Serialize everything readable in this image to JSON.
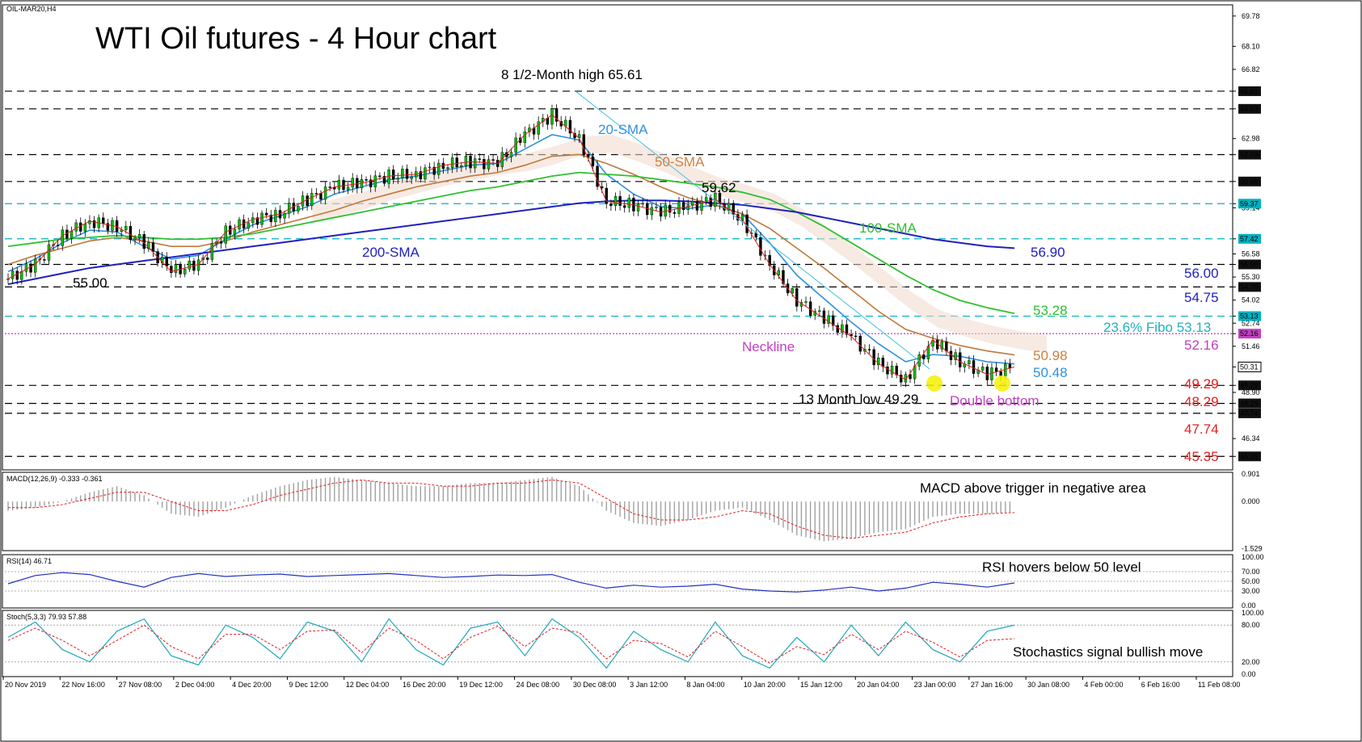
{
  "chart_data": {
    "type": "line",
    "title": "WTI Oil futures - 4 Hour chart",
    "symbol_label": "OIL-MAR20,H4",
    "price_axis_ticks": [
      "69.78",
      "68.10",
      "66.82",
      "65.61",
      "64.63",
      "62.98",
      "62.09",
      "60.60",
      "59.37",
      "59.14",
      "57.42",
      "56.58",
      "56.00",
      "55.30",
      "54.75",
      "54.02",
      "53.13",
      "52.74",
      "52.16",
      "51.46",
      "50.31",
      "49.29",
      "48.90",
      "48.29",
      "47.74",
      "46.34",
      "45.35"
    ],
    "levels": [
      {
        "value": 65.61,
        "label": "65.61",
        "style": "dashed",
        "color": "#000000",
        "axis_box": true
      },
      {
        "value": 64.63,
        "label": "64.63",
        "style": "dashed",
        "color": "#000000",
        "axis_box": true
      },
      {
        "value": 62.09,
        "label": "62.09",
        "style": "dashed",
        "color": "#000000",
        "axis_box": true
      },
      {
        "value": 60.6,
        "label": "60.60",
        "style": "dashed",
        "color": "#000000",
        "axis_box": true
      },
      {
        "value": 59.37,
        "label": "59.37",
        "style": "dashed",
        "color": "#00b0c0",
        "axis_box": true
      },
      {
        "value": 57.42,
        "label": "57.42",
        "style": "dashed",
        "color": "#00b0c0",
        "axis_box": true
      },
      {
        "value": 56.0,
        "label": "56.00",
        "style": "dashed",
        "color": "#000000",
        "axis_box": true
      },
      {
        "value": 54.75,
        "label": "54.75",
        "style": "dashed",
        "color": "#000000",
        "axis_box": true
      },
      {
        "value": 53.13,
        "label": "53.13",
        "style": "dashed",
        "color": "#00b0c0",
        "axis_box": true
      },
      {
        "value": 52.16,
        "label": "52.16",
        "style": "dotted",
        "color": "#c040c0",
        "axis_box": true
      },
      {
        "value": 49.29,
        "label": "49.29",
        "style": "dashed",
        "color": "#000000",
        "axis_box": true
      },
      {
        "value": 48.29,
        "label": "48.29",
        "style": "dashed",
        "color": "#000000",
        "axis_box": true
      },
      {
        "value": 47.74,
        "label": "47.74",
        "style": "dashed",
        "color": "#000000",
        "axis_box": true
      },
      {
        "value": 45.35,
        "label": "45.35",
        "style": "dashed",
        "color": "#000000",
        "axis_box": true
      }
    ],
    "current_price": {
      "value": 50.31,
      "label": "50.31"
    },
    "annotations": [
      {
        "text": "8 1/2-Month high 65.61",
        "color": "#000000"
      },
      {
        "text": "20-SMA",
        "color": "#3090e0"
      },
      {
        "text": "50-SMA",
        "color": "#d08040"
      },
      {
        "text": "59.62",
        "color": "#000000"
      },
      {
        "text": "100-SMA",
        "color": "#30c030"
      },
      {
        "text": "200-SMA",
        "color": "#2020c0"
      },
      {
        "text": "56.90",
        "color": "#2020c0"
      },
      {
        "text": "55.00",
        "color": "#000000"
      },
      {
        "text": "56.00",
        "color": "#2020c0"
      },
      {
        "text": "54.75",
        "color": "#2020c0"
      },
      {
        "text": "53.28",
        "color": "#30c030"
      },
      {
        "text": "23.6% Fibo 53.13",
        "color": "#20b0c0"
      },
      {
        "text": "Neckline",
        "color": "#c040c0"
      },
      {
        "text": "52.16",
        "color": "#c040c0"
      },
      {
        "text": "50.98",
        "color": "#d08040"
      },
      {
        "text": "50.48",
        "color": "#3090e0"
      },
      {
        "text": "49.29",
        "color": "#e02020"
      },
      {
        "text": "13 Month low 49.29",
        "color": "#000000"
      },
      {
        "text": "Double bottom",
        "color": "#c040c0"
      },
      {
        "text": "48.29",
        "color": "#e02020"
      },
      {
        "text": "47.74",
        "color": "#e02020"
      },
      {
        "text": "45.35",
        "color": "#e02020"
      }
    ],
    "x_tick_labels": [
      "20 Nov 2019",
      "22 Nov 16:00",
      "27 Nov 08:00",
      "2 Dec 04:00",
      "4 Dec 20:00",
      "9 Dec 12:00",
      "12 Dec 04:00",
      "16 Dec 20:00",
      "19 Dec 12:00",
      "24 Dec 08:00",
      "30 Dec 08:00",
      "3 Jan 12:00",
      "8 Jan 04:00",
      "10 Jan 20:00",
      "15 Jan 12:00",
      "20 Jan 04:00",
      "23 Jan 00:00",
      "27 Jan 16:00",
      "30 Jan 08:00",
      "4 Feb 00:00",
      "6 Feb 16:00",
      "11 Feb 08:00"
    ],
    "price_series": [
      {
        "name": "close",
        "values": [
          55.2,
          56.0,
          57.6,
          58.4,
          58.1,
          57.2,
          55.6,
          56.0,
          57.8,
          58.5,
          58.8,
          59.6,
          60.3,
          60.5,
          60.9,
          61.0,
          61.5,
          61.7,
          61.6,
          63.2,
          64.3,
          63.0,
          59.5,
          59.3,
          58.9,
          59.2,
          59.62,
          58.5,
          56.0,
          54.0,
          53.0,
          52.0,
          50.5,
          49.6,
          51.8,
          50.6,
          49.9,
          50.31
        ]
      },
      {
        "name": "20-SMA",
        "values": [
          55.6,
          56.3,
          57.2,
          57.9,
          57.8,
          57.0,
          56.3,
          56.5,
          57.4,
          58.2,
          58.7,
          59.2,
          59.9,
          60.3,
          60.7,
          60.9,
          61.2,
          61.5,
          61.6,
          62.4,
          63.2,
          62.9,
          61.0,
          59.9,
          59.2,
          59.1,
          59.3,
          58.8,
          57.2,
          55.4,
          54.1,
          52.8,
          51.6,
          50.6,
          51.0,
          50.9,
          50.6,
          50.48
        ]
      },
      {
        "name": "50-SMA",
        "values": [
          56.0,
          56.5,
          56.9,
          57.3,
          57.5,
          57.3,
          57.0,
          57.0,
          57.3,
          57.8,
          58.2,
          58.6,
          59.0,
          59.5,
          59.9,
          60.3,
          60.6,
          60.9,
          61.1,
          61.5,
          62.0,
          62.1,
          61.6,
          61.0,
          60.3,
          59.7,
          59.3,
          58.8,
          58.0,
          56.9,
          55.8,
          54.6,
          53.4,
          52.4,
          51.9,
          51.5,
          51.2,
          50.98
        ]
      },
      {
        "name": "100-SMA",
        "values": [
          57.0,
          57.2,
          57.4,
          57.5,
          57.6,
          57.5,
          57.4,
          57.4,
          57.5,
          57.7,
          58.0,
          58.3,
          58.6,
          58.9,
          59.2,
          59.5,
          59.8,
          60.1,
          60.3,
          60.6,
          60.9,
          61.1,
          61.0,
          60.9,
          60.7,
          60.5,
          60.3,
          60.0,
          59.6,
          58.9,
          58.1,
          57.2,
          56.3,
          55.4,
          54.6,
          54.0,
          53.6,
          53.28
        ]
      },
      {
        "name": "200-SMA",
        "values": [
          54.9,
          55.2,
          55.5,
          55.8,
          56.0,
          56.2,
          56.4,
          56.6,
          56.8,
          57.0,
          57.2,
          57.4,
          57.6,
          57.8,
          58.0,
          58.2,
          58.4,
          58.6,
          58.8,
          59.0,
          59.2,
          59.4,
          59.5,
          59.55,
          59.55,
          59.5,
          59.4,
          59.3,
          59.1,
          58.9,
          58.6,
          58.3,
          58.0,
          57.7,
          57.4,
          57.2,
          57.0,
          56.9
        ]
      }
    ],
    "panels": [
      {
        "name": "MACD",
        "header": "MACD(12,26,9) -0.333 -0.361",
        "ticks": [
          "0.901",
          "0.000",
          "-1.529"
        ],
        "note": "MACD above trigger in negative area",
        "histogram": [
          -0.3,
          -0.2,
          0.0,
          0.3,
          0.5,
          0.2,
          -0.4,
          -0.5,
          -0.2,
          0.2,
          0.5,
          0.7,
          0.8,
          0.7,
          0.6,
          0.5,
          0.5,
          0.6,
          0.6,
          0.7,
          0.8,
          0.5,
          -0.3,
          -0.7,
          -0.8,
          -0.6,
          -0.3,
          -0.2,
          -0.6,
          -1.1,
          -1.3,
          -1.2,
          -1.0,
          -0.9,
          -0.5,
          -0.4,
          -0.4,
          -0.33
        ],
        "signal": [
          -0.2,
          -0.2,
          -0.1,
          0.1,
          0.3,
          0.3,
          0.0,
          -0.3,
          -0.3,
          -0.1,
          0.2,
          0.4,
          0.6,
          0.7,
          0.6,
          0.6,
          0.5,
          0.5,
          0.6,
          0.6,
          0.7,
          0.6,
          0.1,
          -0.4,
          -0.6,
          -0.6,
          -0.5,
          -0.3,
          -0.4,
          -0.8,
          -1.1,
          -1.2,
          -1.1,
          -1.0,
          -0.7,
          -0.5,
          -0.4,
          -0.36
        ]
      },
      {
        "name": "RSI",
        "header": "RSI(14) 46.71",
        "ticks": [
          "100.00",
          "70.00",
          "50.00",
          "30.00",
          "0.00"
        ],
        "note": "RSI hovers below 50 level",
        "values": [
          45,
          62,
          68,
          64,
          50,
          38,
          58,
          66,
          60,
          63,
          65,
          60,
          62,
          64,
          66,
          62,
          58,
          60,
          63,
          62,
          64,
          48,
          36,
          42,
          38,
          40,
          44,
          34,
          30,
          28,
          32,
          38,
          30,
          36,
          48,
          44,
          38,
          46.71
        ]
      },
      {
        "name": "Stochastics",
        "header": "Stoch(5,3,3) 79.93 57.88",
        "ticks": [
          "100.00",
          "80.00",
          "20.00",
          "0.00"
        ],
        "note": "Stochastics signal bullish move",
        "k": [
          60,
          85,
          40,
          20,
          70,
          90,
          30,
          15,
          80,
          60,
          25,
          85,
          70,
          20,
          90,
          40,
          15,
          75,
          85,
          30,
          90,
          60,
          10,
          70,
          40,
          20,
          85,
          30,
          10,
          60,
          20,
          80,
          30,
          85,
          40,
          20,
          70,
          79.93
        ],
        "d": [
          55,
          75,
          55,
          30,
          55,
          80,
          45,
          25,
          65,
          65,
          40,
          70,
          72,
          35,
          75,
          55,
          25,
          60,
          78,
          45,
          75,
          68,
          25,
          55,
          50,
          28,
          70,
          45,
          18,
          45,
          32,
          65,
          40,
          70,
          52,
          28,
          55,
          57.88
        ]
      }
    ]
  }
}
